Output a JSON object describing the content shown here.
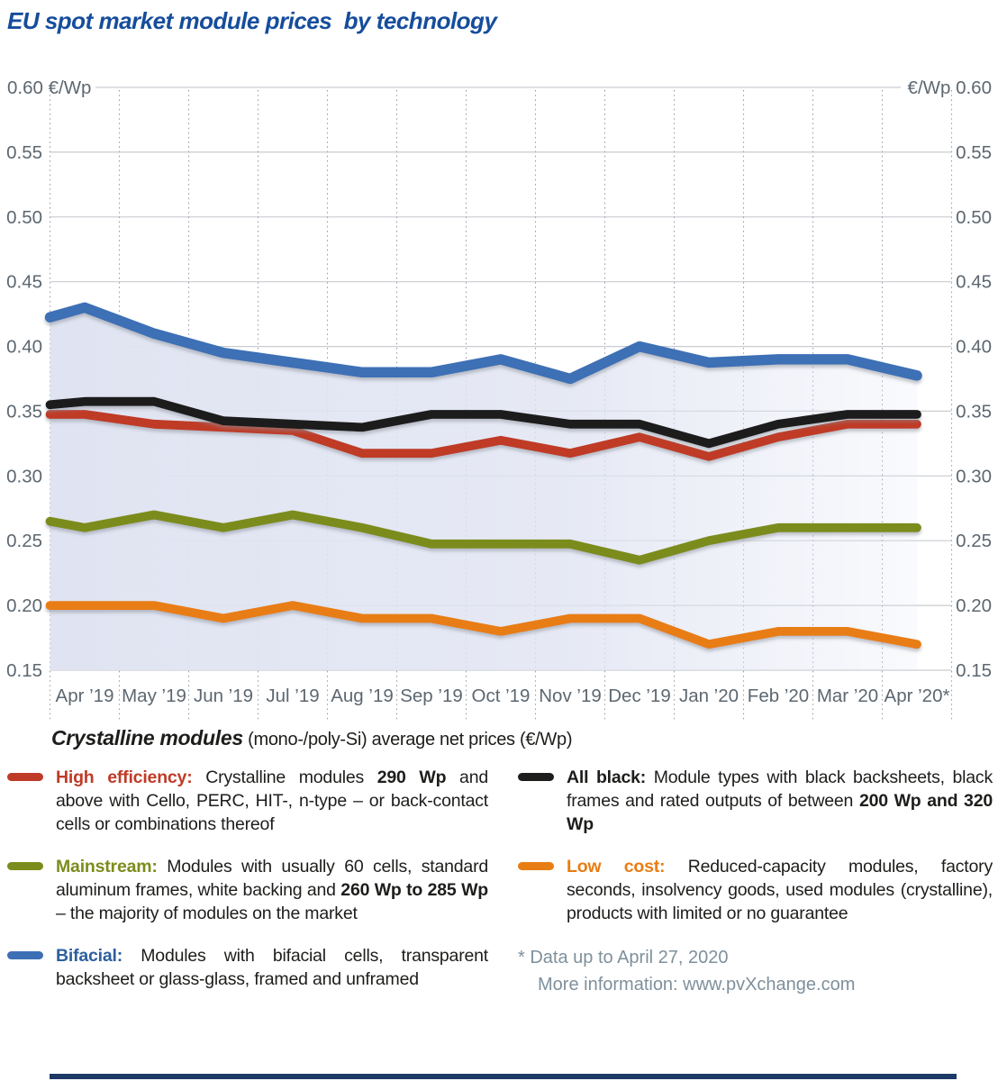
{
  "title": "EU spot market module prices  by technology",
  "chart_data": {
    "type": "line",
    "title": "EU spot market module prices by technology",
    "unit": "€/Wp",
    "categories": [
      "Apr ’19",
      "May ’19",
      "Jun ’19",
      "Jul ’19",
      "Aug ’19",
      "Sep ’19",
      "Oct ’19",
      "Nov ’19",
      "Dec ’19",
      "Jan ’20",
      "Feb ’20",
      "Mar ’20",
      "Apr ’20*"
    ],
    "ylim": [
      0.15,
      0.6
    ],
    "y_tick_step": 0.05,
    "y_ticks": [
      "0.60",
      "0.55",
      "0.50",
      "0.45",
      "0.40",
      "0.35",
      "0.30",
      "0.25",
      "0.20",
      "0.15"
    ],
    "y_axis_label_left": "0.60 €/Wp",
    "y_axis_label_right": "€/Wp 0.60",
    "grid": {
      "horizontal": "solid",
      "vertical": "dotted"
    },
    "legend_position": "below",
    "series": [
      {
        "name": "Bifacial",
        "color": "#3d6fb5",
        "area_fill": "#e0e4f2",
        "edge_start": 0.4225,
        "values": [
          0.43,
          0.41,
          0.395,
          0.3875,
          0.38,
          0.38,
          0.39,
          0.375,
          0.4,
          0.3875,
          0.39,
          0.39,
          0.3775
        ]
      },
      {
        "name": "High efficiency",
        "color": "#bf3b27",
        "edge_start": 0.3475,
        "values": [
          0.3475,
          0.34,
          0.3375,
          0.335,
          0.3175,
          0.3175,
          0.3275,
          0.3175,
          0.33,
          0.315,
          0.33,
          0.34,
          0.34
        ]
      },
      {
        "name": "All black",
        "color": "#1d1d1b",
        "edge_start": 0.355,
        "values": [
          0.3575,
          0.3575,
          0.3425,
          0.34,
          0.3375,
          0.3475,
          0.3475,
          0.34,
          0.34,
          0.325,
          0.34,
          0.3475,
          0.3475
        ]
      },
      {
        "name": "Mainstream",
        "color": "#7c8c1c",
        "edge_start": 0.265,
        "values": [
          0.26,
          0.27,
          0.26,
          0.27,
          0.26,
          0.2475,
          0.2475,
          0.2475,
          0.235,
          0.25,
          0.26,
          0.26,
          0.26
        ]
      },
      {
        "name": "Low cost",
        "color": "#e87d13",
        "edge_start": 0.2,
        "values": [
          0.2,
          0.2,
          0.19,
          0.2,
          0.19,
          0.19,
          0.18,
          0.19,
          0.19,
          0.17,
          0.18,
          0.18,
          0.17
        ]
      }
    ]
  },
  "legend": {
    "heading_bold": "Crystalline modules",
    "heading_rest": " (mono-/poly-Si) average net prices (€/Wp)",
    "columns": {
      "left": [
        {
          "id": "high-efficiency",
          "label": "High efficiency:",
          "label_color": "#bf3b27",
          "swatch_color": "#bf3b27",
          "segments": [
            {
              "t": "Crystalline modules ",
              "b": false
            },
            {
              "t": "290 Wp",
              "b": true
            },
            {
              "t": " and above with Cello, PERC, HIT-, n-type – or back-contact cells or combinations thereof",
              "b": false
            }
          ]
        },
        {
          "id": "mainstream",
          "label": "Mainstream:",
          "label_color": "#7c8c1c",
          "swatch_color": "#7c8c1c",
          "segments": [
            {
              "t": "Modules with usually 60 cells, standard aluminum frames, white backing and ",
              "b": false
            },
            {
              "t": "260 Wp to 285 Wp",
              "b": true
            },
            {
              "t": " – the majority of modules on the market",
              "b": false
            }
          ]
        },
        {
          "id": "bifacial",
          "label": "Bifacial:",
          "label_color": "#2d5f9e",
          "swatch_color": "#3d6fb5",
          "segments": [
            {
              "t": "Modules with bifacial cells, transparent backsheet or glass-glass, framed and unframed",
              "b": false
            }
          ]
        }
      ],
      "right": [
        {
          "id": "all-black",
          "label": "All black:",
          "label_color": "#1d1d1b",
          "swatch_color": "#1d1d1b",
          "segments": [
            {
              "t": "Module types with black backsheets, black frames and rated outputs of between ",
              "b": false
            },
            {
              "t": "200 Wp and 320 Wp",
              "b": true
            }
          ]
        },
        {
          "id": "low-cost",
          "label": "Low cost:",
          "label_color": "#e87d13",
          "swatch_color": "#e87d13",
          "segments": [
            {
              "t": "Reduced-capacity modules, factory seconds, insolvency goods, used modules (crystalline), products with limited or no guarantee",
              "b": false
            }
          ]
        },
        {
          "id": "footnote",
          "type": "note",
          "color": "#7e909c",
          "lines": [
            "* Data up to April 27, 2020",
            "More information: www.pvXchange.com"
          ]
        }
      ]
    }
  },
  "footer_bar_color": "#1d3a66",
  "style_colors": {
    "title_blue": "#164d9c",
    "axis_text": "#5d6770",
    "grid_solid": "#c9ccd1",
    "grid_dotted": "#9aa2ab"
  }
}
